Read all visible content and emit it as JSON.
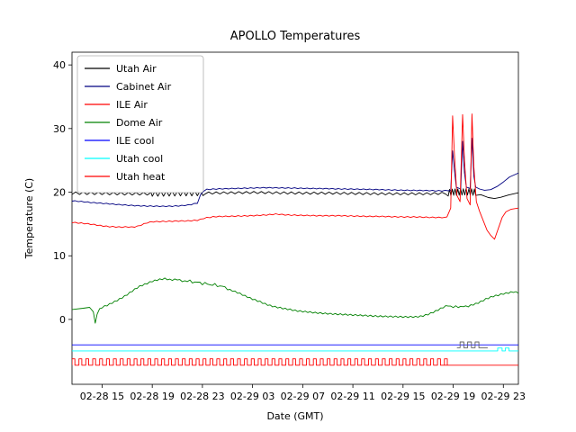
{
  "figure": {
    "title": "APOLLO Temperatures",
    "xlabel": "Date (GMT)",
    "ylabel": "Temperature (C)"
  },
  "chart_data": {
    "type": "line",
    "title": "APOLLO Temperatures",
    "xlabel": "Date (GMT)",
    "ylabel": "Temperature (C)",
    "x_unit": "hours since 02-28 00:00 GMT",
    "xlim": [
      12.6,
      48.2
    ],
    "ylim": [
      -10.2,
      42
    ],
    "grid": false,
    "legend_position": "upper left",
    "colors": {
      "utah_air": "#000000",
      "cabinet_air": "#000080",
      "ile_air": "#ff0000",
      "dome_air": "#008000",
      "ile_cool": "#0000ff",
      "utah_cool": "#00ffff",
      "utah_heat": "#ff0000",
      "status_steps": "#606060"
    },
    "x_ticks": [
      {
        "value": 15,
        "label": "02-28 15"
      },
      {
        "value": 19,
        "label": "02-28 19"
      },
      {
        "value": 23,
        "label": "02-28 23"
      },
      {
        "value": 27,
        "label": "02-29 03"
      },
      {
        "value": 31,
        "label": "02-29 07"
      },
      {
        "value": 35,
        "label": "02-29 11"
      },
      {
        "value": 39,
        "label": "02-29 15"
      },
      {
        "value": 43,
        "label": "02-29 19"
      },
      {
        "value": 47,
        "label": "02-29 23"
      }
    ],
    "y_ticks": [
      {
        "value": 0,
        "label": "0"
      },
      {
        "value": 10,
        "label": "10"
      },
      {
        "value": 20,
        "label": "20"
      },
      {
        "value": 30,
        "label": "30"
      },
      {
        "value": 40,
        "label": "40"
      }
    ],
    "series": [
      {
        "name": "Utah Air",
        "color": "#000000",
        "legend": true,
        "points": [
          [
            12.6,
            19.85
          ],
          [
            15,
            19.8
          ],
          [
            17,
            19.75
          ],
          [
            19,
            19.75
          ],
          [
            21,
            19.8
          ],
          [
            23,
            19.85
          ],
          [
            25,
            19.9
          ],
          [
            27,
            19.95
          ],
          [
            29,
            19.9
          ],
          [
            31,
            19.85
          ],
          [
            33,
            19.85
          ],
          [
            35,
            19.8
          ],
          [
            37,
            19.75
          ],
          [
            39,
            19.75
          ],
          [
            41,
            19.75
          ],
          [
            42,
            19.8
          ],
          [
            42.6,
            19.9
          ],
          [
            43,
            20.0
          ],
          [
            44,
            20.05
          ],
          [
            44.8,
            20.0
          ],
          [
            45.2,
            19.6
          ],
          [
            45.8,
            19.15
          ],
          [
            46.3,
            19.0
          ],
          [
            46.8,
            19.2
          ],
          [
            47.4,
            19.55
          ],
          [
            48.2,
            19.9
          ]
        ],
        "zigzag": [
          {
            "x0": 12.6,
            "x1": 19,
            "period": 0.6,
            "amp": 0.2
          },
          {
            "x0": 19,
            "x1": 23.2,
            "period": 0.45,
            "amp": 0.4
          },
          {
            "x0": 23.2,
            "x1": 42.6,
            "period": 0.6,
            "amp": 0.17
          },
          {
            "x0": 42.6,
            "x1": 44.8,
            "period": 0.22,
            "amp": 0.5
          }
        ]
      },
      {
        "name": "Cabinet Air",
        "color": "#000080",
        "legend": true,
        "points": [
          [
            12.6,
            18.65
          ],
          [
            14,
            18.4
          ],
          [
            15,
            18.25
          ],
          [
            16,
            18.1
          ],
          [
            17,
            17.95
          ],
          [
            18,
            17.85
          ],
          [
            19,
            17.8
          ],
          [
            20,
            17.78
          ],
          [
            21,
            17.82
          ],
          [
            21.5,
            17.9
          ],
          [
            22,
            18.0
          ],
          [
            22.6,
            18.3
          ],
          [
            22.9,
            19.8
          ],
          [
            23.2,
            20.4
          ],
          [
            24,
            20.5
          ],
          [
            25,
            20.55
          ],
          [
            26,
            20.6
          ],
          [
            27,
            20.65
          ],
          [
            28,
            20.7
          ],
          [
            29,
            20.68
          ],
          [
            30,
            20.65
          ],
          [
            31,
            20.6
          ],
          [
            32,
            20.58
          ],
          [
            33,
            20.55
          ],
          [
            34,
            20.5
          ],
          [
            35,
            20.48
          ],
          [
            36,
            20.45
          ],
          [
            37,
            20.4
          ],
          [
            38,
            20.35
          ],
          [
            39,
            20.3
          ],
          [
            40,
            20.28
          ],
          [
            41,
            20.25
          ],
          [
            42,
            20.2
          ],
          [
            42.8,
            20.3
          ],
          [
            42.95,
            26.5
          ],
          [
            43.1,
            23.5
          ],
          [
            43.25,
            20.8
          ],
          [
            43.6,
            20.5
          ],
          [
            43.75,
            28.0
          ],
          [
            43.9,
            23.0
          ],
          [
            44.05,
            20.8
          ],
          [
            44.35,
            20.6
          ],
          [
            44.5,
            28.5
          ],
          [
            44.65,
            22.5
          ],
          [
            44.8,
            20.8
          ],
          [
            45.1,
            20.5
          ],
          [
            45.5,
            20.3
          ],
          [
            46,
            20.4
          ],
          [
            46.5,
            20.9
          ],
          [
            47,
            21.6
          ],
          [
            47.5,
            22.4
          ],
          [
            48.2,
            23.0
          ]
        ],
        "zigzag": [
          {
            "x0": 12.6,
            "x1": 42.6,
            "period": 0.5,
            "amp": 0.06
          }
        ]
      },
      {
        "name": "ILE Air",
        "color": "#ff0000",
        "legend": true,
        "points": [
          [
            12.6,
            15.25
          ],
          [
            13.5,
            15.1
          ],
          [
            14,
            15.0
          ],
          [
            14.5,
            14.85
          ],
          [
            15,
            14.7
          ],
          [
            15.5,
            14.6
          ],
          [
            16,
            14.55
          ],
          [
            16.5,
            14.5
          ],
          [
            17,
            14.55
          ],
          [
            17.4,
            14.5
          ],
          [
            17.8,
            14.6
          ],
          [
            18.2,
            14.9
          ],
          [
            18.6,
            15.2
          ],
          [
            19,
            15.35
          ],
          [
            20,
            15.4
          ],
          [
            21,
            15.45
          ],
          [
            22,
            15.5
          ],
          [
            22.7,
            15.6
          ],
          [
            23.2,
            15.95
          ],
          [
            24,
            16.15
          ],
          [
            25,
            16.2
          ],
          [
            26,
            16.25
          ],
          [
            27,
            16.3
          ],
          [
            28,
            16.4
          ],
          [
            28.5,
            16.5
          ],
          [
            29,
            16.55
          ],
          [
            29.5,
            16.45
          ],
          [
            30,
            16.4
          ],
          [
            31,
            16.35
          ],
          [
            32,
            16.3
          ],
          [
            33,
            16.3
          ],
          [
            34,
            16.3
          ],
          [
            35,
            16.25
          ],
          [
            36,
            16.2
          ],
          [
            37,
            16.2
          ],
          [
            38,
            16.15
          ],
          [
            39,
            16.1
          ],
          [
            40,
            16.1
          ],
          [
            41,
            16.05
          ],
          [
            42,
            16.0
          ],
          [
            42.5,
            16.1
          ],
          [
            42.8,
            17.5
          ],
          [
            42.95,
            32.0
          ],
          [
            43.1,
            26.0
          ],
          [
            43.3,
            19.5
          ],
          [
            43.55,
            18.5
          ],
          [
            43.75,
            32.2
          ],
          [
            43.9,
            25.0
          ],
          [
            44.1,
            19.0
          ],
          [
            44.35,
            18.0
          ],
          [
            44.5,
            32.3
          ],
          [
            44.65,
            24.0
          ],
          [
            44.85,
            18.5
          ],
          [
            45.1,
            17.0
          ],
          [
            45.4,
            15.5
          ],
          [
            45.7,
            14.0
          ],
          [
            46.0,
            13.2
          ],
          [
            46.3,
            12.6
          ],
          [
            46.6,
            14.3
          ],
          [
            46.9,
            16.0
          ],
          [
            47.2,
            16.9
          ],
          [
            47.6,
            17.3
          ],
          [
            48.2,
            17.5
          ]
        ],
        "zigzag": [
          {
            "x0": 12.6,
            "x1": 42.3,
            "period": 0.5,
            "amp": 0.07
          }
        ]
      },
      {
        "name": "Dome Air",
        "color": "#008000",
        "legend": true,
        "points": [
          [
            12.6,
            1.55
          ],
          [
            13.5,
            1.75
          ],
          [
            14,
            1.9
          ],
          [
            14.3,
            1.2
          ],
          [
            14.45,
            -0.6
          ],
          [
            14.6,
            0.8
          ],
          [
            14.8,
            1.7
          ],
          [
            15,
            1.9
          ],
          [
            15.5,
            2.3
          ],
          [
            16,
            2.8
          ],
          [
            16.5,
            3.3
          ],
          [
            17,
            3.9
          ],
          [
            17.5,
            4.6
          ],
          [
            18,
            5.2
          ],
          [
            18.5,
            5.6
          ],
          [
            19,
            6.0
          ],
          [
            19.5,
            6.25
          ],
          [
            20,
            6.4
          ],
          [
            20.5,
            6.2
          ],
          [
            21,
            6.3
          ],
          [
            21.5,
            5.95
          ],
          [
            22,
            6.1
          ],
          [
            22.3,
            5.7
          ],
          [
            22.6,
            5.95
          ],
          [
            23,
            5.55
          ],
          [
            23.3,
            5.8
          ],
          [
            23.6,
            5.35
          ],
          [
            24,
            5.55
          ],
          [
            24.3,
            5.1
          ],
          [
            24.6,
            5.3
          ],
          [
            25,
            4.75
          ],
          [
            25.5,
            4.45
          ],
          [
            26,
            4.05
          ],
          [
            26.5,
            3.6
          ],
          [
            27,
            3.2
          ],
          [
            27.5,
            2.85
          ],
          [
            28,
            2.45
          ],
          [
            28.5,
            2.1
          ],
          [
            29,
            1.9
          ],
          [
            29.5,
            1.7
          ],
          [
            30,
            1.55
          ],
          [
            30.5,
            1.35
          ],
          [
            31,
            1.25
          ],
          [
            32,
            1.05
          ],
          [
            33,
            0.9
          ],
          [
            34,
            0.8
          ],
          [
            35,
            0.7
          ],
          [
            36,
            0.6
          ],
          [
            37,
            0.5
          ],
          [
            38,
            0.45
          ],
          [
            39,
            0.4
          ],
          [
            40,
            0.4
          ],
          [
            40.5,
            0.5
          ],
          [
            41,
            0.8
          ],
          [
            41.5,
            1.2
          ],
          [
            42,
            1.7
          ],
          [
            42.3,
            2.0
          ],
          [
            42.6,
            2.2
          ],
          [
            42.9,
            1.9
          ],
          [
            43.2,
            2.05
          ],
          [
            43.5,
            1.9
          ],
          [
            43.8,
            2.1
          ],
          [
            44.1,
            2.0
          ],
          [
            44.4,
            2.2
          ],
          [
            44.7,
            2.4
          ],
          [
            45,
            2.6
          ],
          [
            45.3,
            2.9
          ],
          [
            45.6,
            3.2
          ],
          [
            46,
            3.5
          ],
          [
            46.3,
            3.7
          ],
          [
            46.6,
            3.8
          ],
          [
            46.9,
            4.0
          ],
          [
            47.2,
            4.1
          ],
          [
            47.5,
            4.2
          ],
          [
            47.8,
            4.35
          ],
          [
            48.2,
            4.2
          ]
        ],
        "zigzag": [
          {
            "x0": 15,
            "x1": 48.2,
            "period": 0.4,
            "amp": 0.1
          }
        ]
      },
      {
        "name": "ILE cool",
        "color": "#0000ff",
        "legend": true,
        "points": [
          [
            12.6,
            -4.0
          ],
          [
            48.2,
            -4.0
          ]
        ]
      },
      {
        "name": "Utah cool",
        "color": "#00ffff",
        "legend": true,
        "points": [
          [
            12.6,
            -4.95
          ],
          [
            46.55,
            -4.95
          ],
          [
            46.55,
            -4.5
          ],
          [
            46.9,
            -4.5
          ],
          [
            46.9,
            -4.95
          ],
          [
            47.15,
            -4.95
          ],
          [
            47.15,
            -4.5
          ],
          [
            47.45,
            -4.5
          ],
          [
            47.45,
            -4.95
          ],
          [
            48.2,
            -4.95
          ]
        ]
      },
      {
        "name": "Utah heat",
        "color": "#ff0000",
        "legend": true,
        "pulse": {
          "x0": 12.6,
          "x1": 42.3,
          "period": 0.55,
          "duty": 0.42,
          "low": -7.2,
          "high": -6.2
        },
        "points": [
          [
            42.3,
            -7.2
          ],
          [
            48.2,
            -7.2
          ]
        ]
      },
      {
        "name": "status steps",
        "color": "#606060",
        "legend": false,
        "points": [
          [
            43.3,
            -4.45
          ],
          [
            43.55,
            -4.45
          ],
          [
            43.55,
            -3.55
          ],
          [
            43.85,
            -3.55
          ],
          [
            43.85,
            -4.45
          ],
          [
            44.15,
            -4.45
          ],
          [
            44.15,
            -3.55
          ],
          [
            44.45,
            -3.55
          ],
          [
            44.45,
            -4.45
          ],
          [
            44.75,
            -4.45
          ],
          [
            44.75,
            -3.55
          ],
          [
            45.05,
            -3.55
          ],
          [
            45.05,
            -4.45
          ],
          [
            45.75,
            -4.45
          ]
        ]
      }
    ]
  }
}
